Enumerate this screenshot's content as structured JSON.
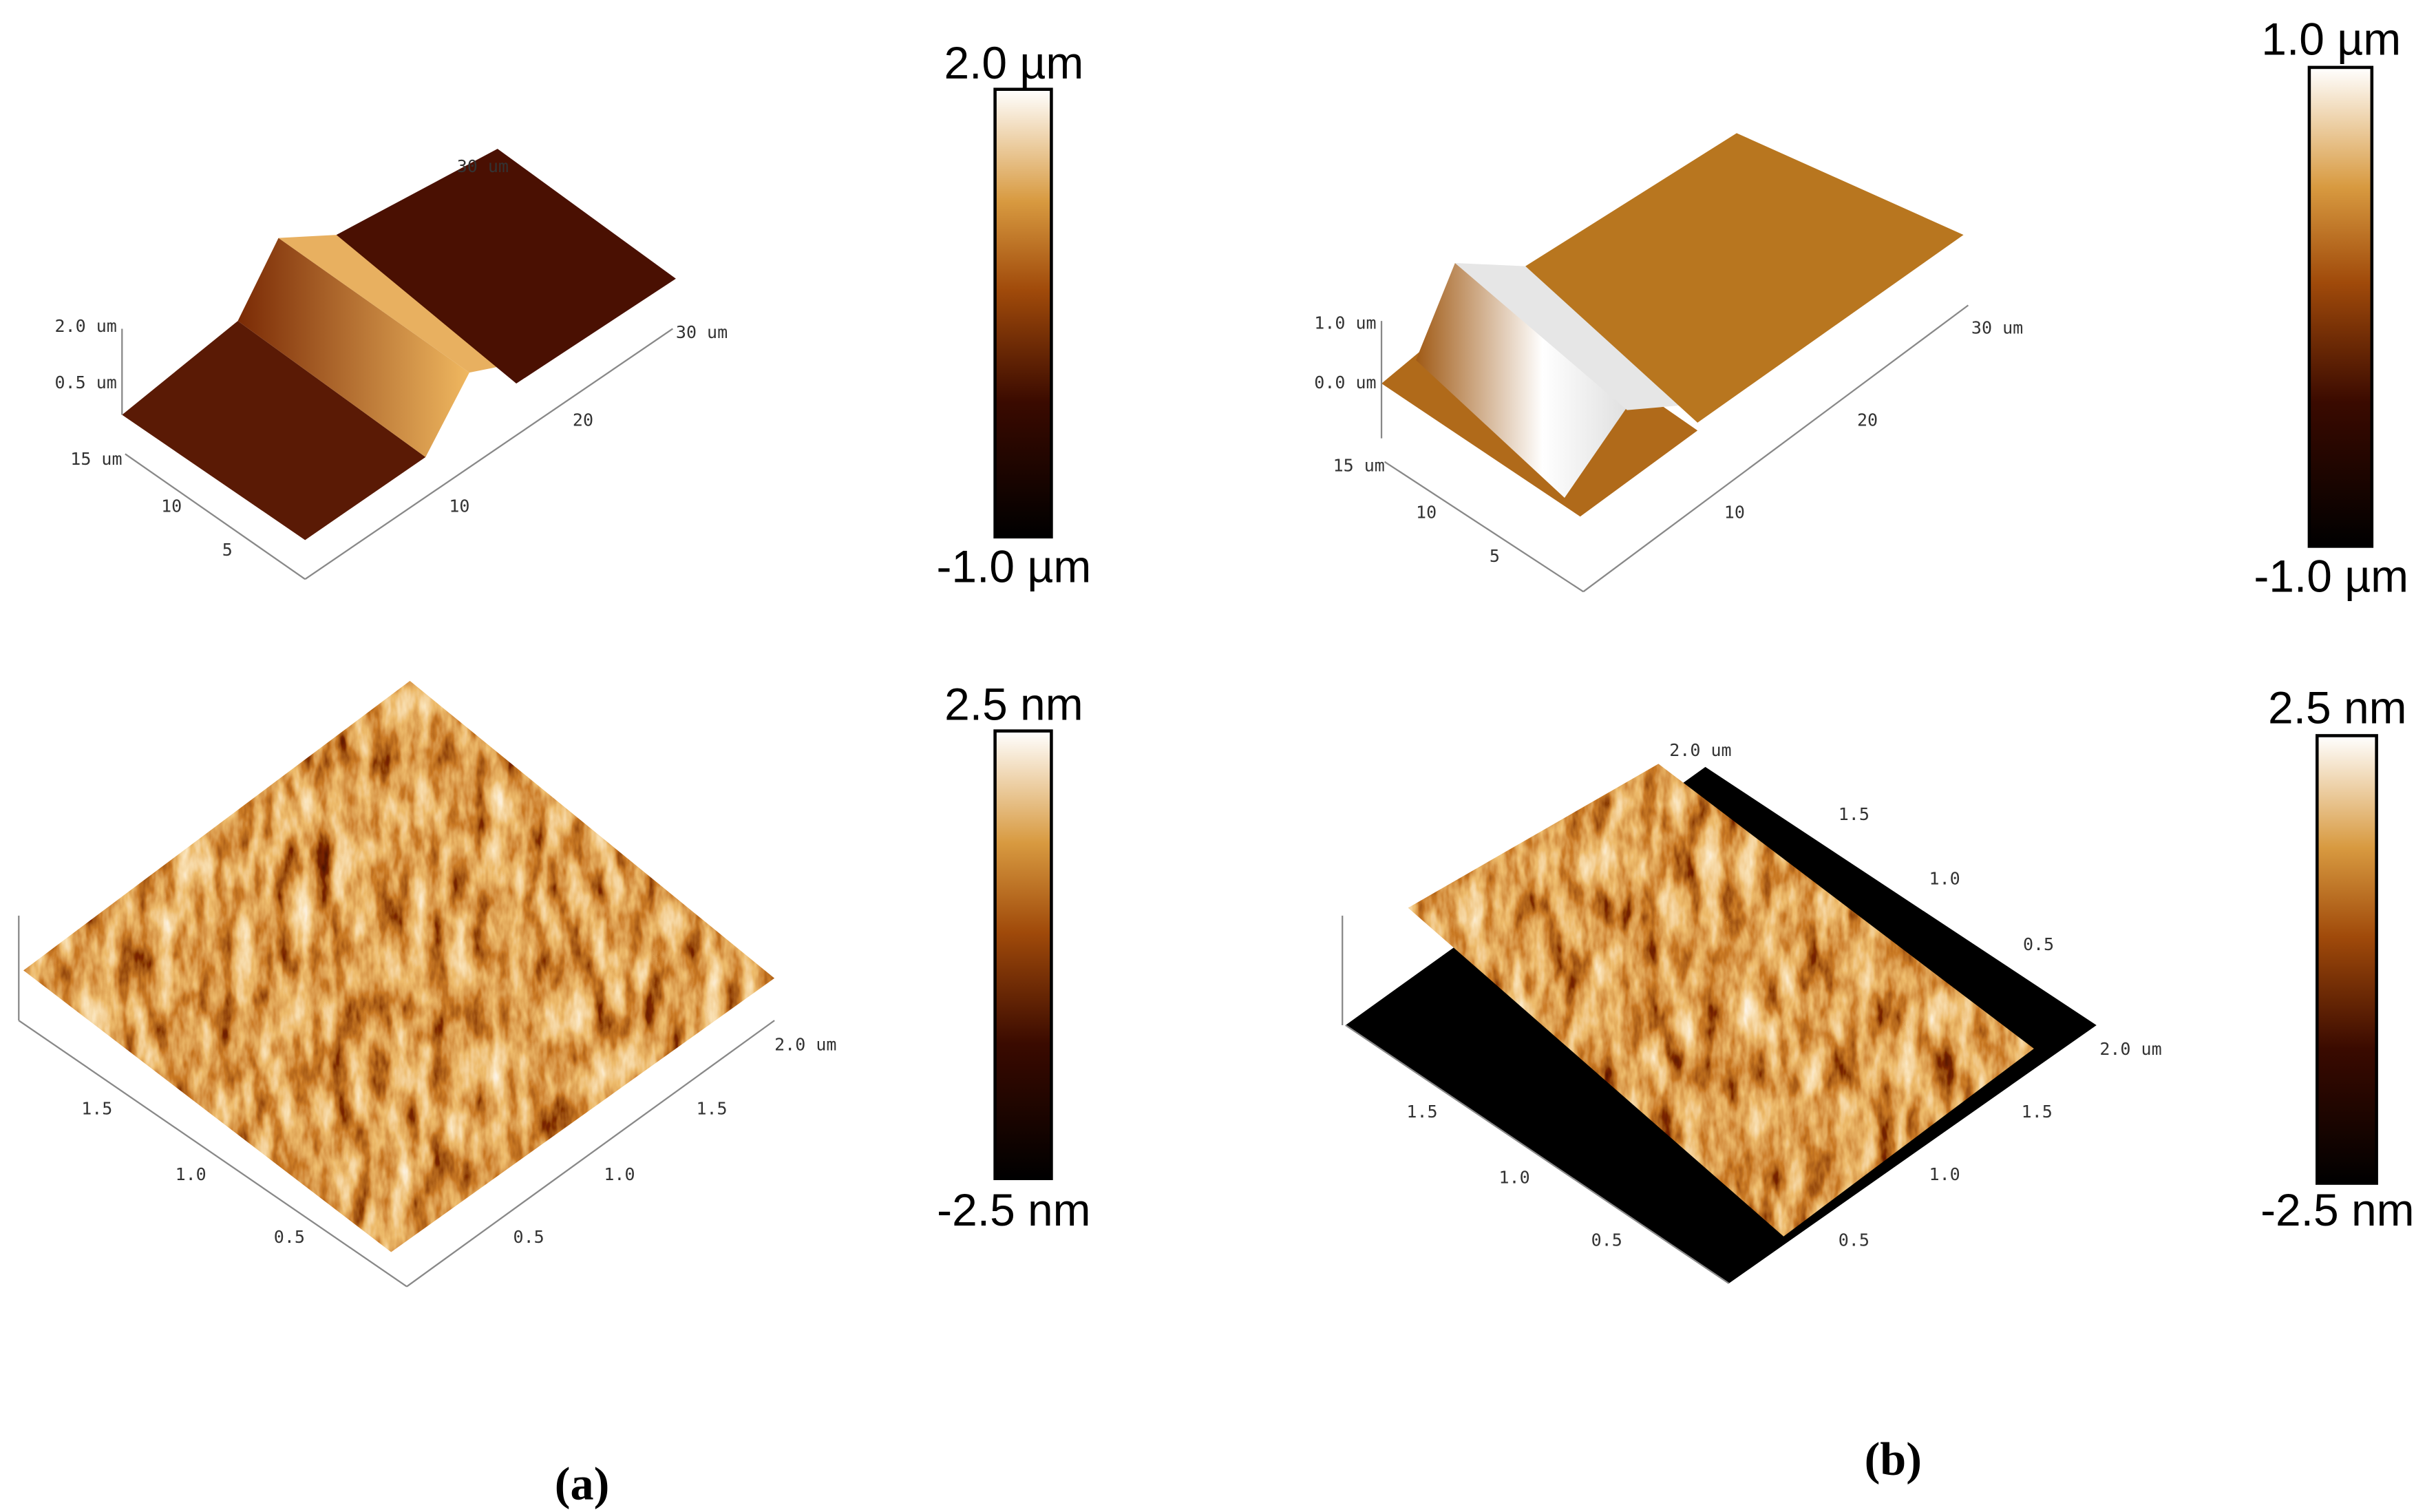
{
  "figure": {
    "a": {
      "label": "(a)",
      "top": {
        "scale_max": "2.0 µm",
        "scale_min": "-1.0 µm",
        "axis_labels": [
          "30 um",
          "2.0 um",
          "0.5 um",
          "15 um",
          "10",
          "5",
          "10",
          "20",
          "30 um"
        ]
      },
      "bottom": {
        "scale_max": "2.5 nm",
        "scale_min": "-2.5 nm",
        "axis_labels": [
          "1.5",
          "1.0",
          "0.5",
          "2.0 um",
          "1.5",
          "1.0",
          "0.5"
        ]
      }
    },
    "b": {
      "label": "(b)",
      "top": {
        "scale_max": "1.0 µm",
        "scale_min": "-1.0 µm",
        "axis_labels": [
          "1.0 um",
          "0.0 um",
          "15 um",
          "10",
          "5",
          "10",
          "20",
          "30 um"
        ]
      },
      "bottom": {
        "scale_max": "2.5 nm",
        "scale_min": "-2.5 nm",
        "axis_labels": [
          "2.0 um",
          "1.5",
          "1.0",
          "0.5",
          "2.0 um",
          "1.5",
          "1.0",
          "0.5",
          "1.5",
          "1.0",
          "0.5"
        ]
      }
    }
  }
}
